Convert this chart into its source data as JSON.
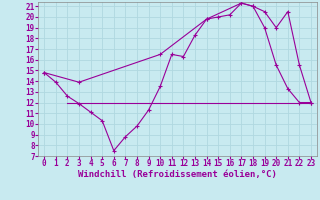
{
  "background_color": "#c8eaf0",
  "grid_color": "#b0d8e0",
  "line_color": "#990099",
  "xlim": [
    -0.5,
    23.5
  ],
  "ylim": [
    7,
    21.4
  ],
  "yticks": [
    7,
    8,
    9,
    10,
    11,
    12,
    13,
    14,
    15,
    16,
    17,
    18,
    19,
    20,
    21
  ],
  "xticks": [
    0,
    1,
    2,
    3,
    4,
    5,
    6,
    7,
    8,
    9,
    10,
    11,
    12,
    13,
    14,
    15,
    16,
    17,
    18,
    19,
    20,
    21,
    22,
    23
  ],
  "xlabel": "Windchill (Refroidissement éolien,°C)",
  "line1_x": [
    0,
    1,
    2,
    3,
    4,
    5,
    6,
    7,
    8,
    9,
    10,
    11,
    12,
    13,
    14,
    15,
    16,
    17,
    18,
    19,
    20,
    21,
    22,
    23
  ],
  "line1_y": [
    14.8,
    13.9,
    12.6,
    11.9,
    11.1,
    10.3,
    7.5,
    8.8,
    9.8,
    11.3,
    13.5,
    16.5,
    16.3,
    18.3,
    19.8,
    20.0,
    20.2,
    21.3,
    21.0,
    19.0,
    15.5,
    13.3,
    12.0,
    12.0
  ],
  "line2_x": [
    0,
    3,
    10,
    14,
    17,
    18,
    19,
    20,
    21,
    22,
    23
  ],
  "line2_y": [
    14.8,
    13.9,
    16.5,
    19.8,
    21.3,
    21.0,
    20.5,
    19.0,
    20.5,
    15.5,
    12.0
  ],
  "line3_x": [
    2,
    23
  ],
  "line3_y": [
    12.0,
    12.0
  ],
  "tick_fontsize": 5.5,
  "xlabel_fontsize": 6.5
}
